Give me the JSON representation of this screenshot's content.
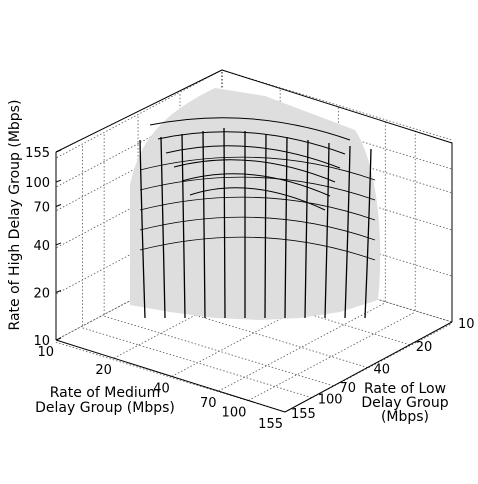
{
  "chart_data": {
    "type": "surface3d",
    "title": "",
    "axes": {
      "x": {
        "label_lines": [
          "Rate of Medium",
          "Delay Group (Mbps)"
        ],
        "ticks": [
          "10",
          "20",
          "40",
          "70",
          "100",
          "155"
        ],
        "scale": "log"
      },
      "y": {
        "label_lines": [
          "Rate of Low",
          "Delay Group",
          "(Mbps)"
        ],
        "ticks": [
          "10",
          "20",
          "40",
          "70",
          "100",
          "155"
        ],
        "scale": "log"
      },
      "z": {
        "label": "Rate of High Delay Group (Mbps)",
        "ticks": [
          "10",
          "20",
          "40",
          "70",
          "100",
          "155"
        ],
        "scale": "log"
      }
    },
    "surface": {
      "description_values": "upper boundary: z drops from ~155 near low x,y to ~20 at high x,y",
      "x": [
        10,
        20,
        40,
        70,
        100,
        155
      ],
      "y": [
        10,
        20,
        40,
        70,
        100,
        155
      ],
      "z_at_low_corner": 155,
      "z_at_high_corner": 20
    },
    "grid": true,
    "colors": {
      "surface": "#dedede",
      "mesh": "#000000",
      "grid": "#555555"
    }
  }
}
